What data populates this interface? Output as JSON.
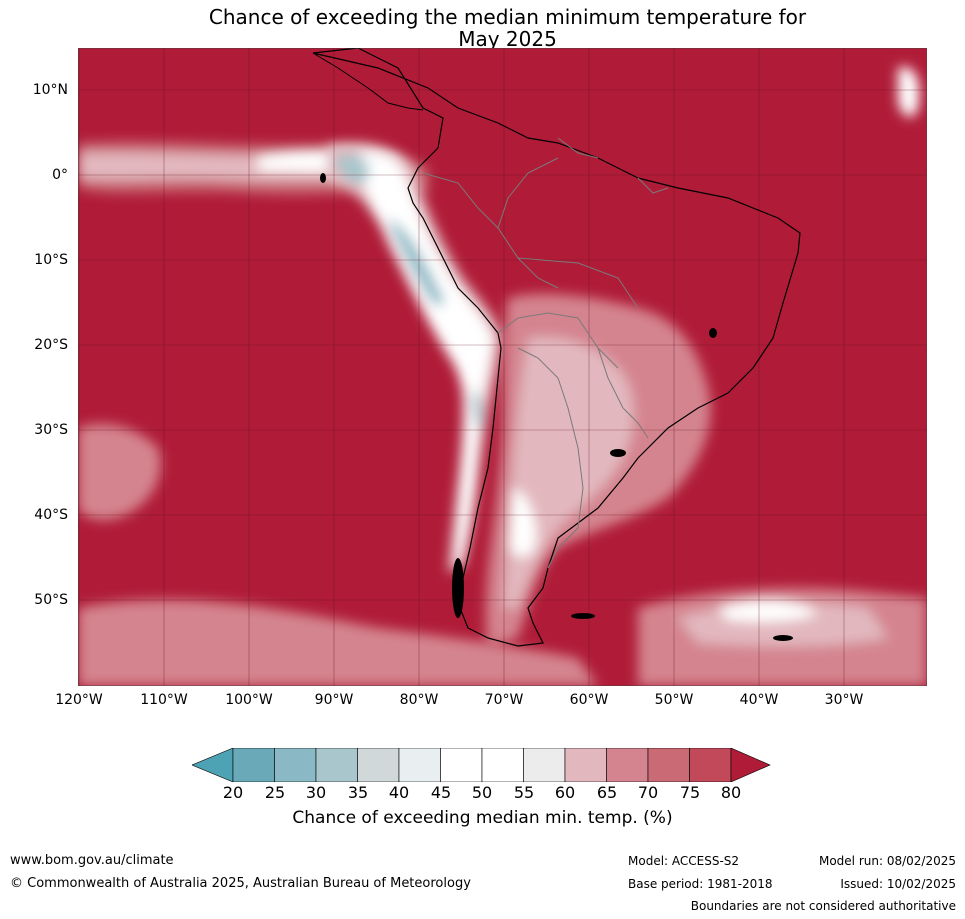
{
  "header": {
    "title_line1": "Chance of exceeding the median minimum temperature for",
    "title_line2": "May 2025"
  },
  "axes": {
    "lat_labels": [
      "10°N",
      "0°",
      "10°S",
      "20°S",
      "30°S",
      "40°S",
      "50°S"
    ],
    "lon_labels": [
      "120°W",
      "110°W",
      "100°W",
      "90°W",
      "80°W",
      "70°W",
      "60°W",
      "50°W",
      "40°W",
      "30°W"
    ]
  },
  "colorbar": {
    "ticks": [
      "20",
      "25",
      "30",
      "35",
      "40",
      "45",
      "50",
      "55",
      "60",
      "65",
      "70",
      "75",
      "80"
    ],
    "colors": [
      "#4da3b3",
      "#6aaab8",
      "#8ab8c5",
      "#a8c6cc",
      "#d0d8da",
      "#e9eff1",
      "#ffffff",
      "#ffffff",
      "#ececec",
      "#e2b8be",
      "#d4848f",
      "#c96a75",
      "#c2495a",
      "#b01c38"
    ],
    "label": "Chance of exceeding median min. temp. (%)"
  },
  "footer": {
    "website": "www.bom.gov.au/climate",
    "copyright": "© Commonwealth of Australia 2025, Australian Bureau of Meteorology",
    "model": "Model: ACCESS-S2",
    "base_period": "Base period: 1981-2018",
    "model_run": "Model run: 08/02/2025",
    "issued": "Issued: 10/02/2025",
    "disclaimer": "Boundaries are not considered authoritative"
  }
}
